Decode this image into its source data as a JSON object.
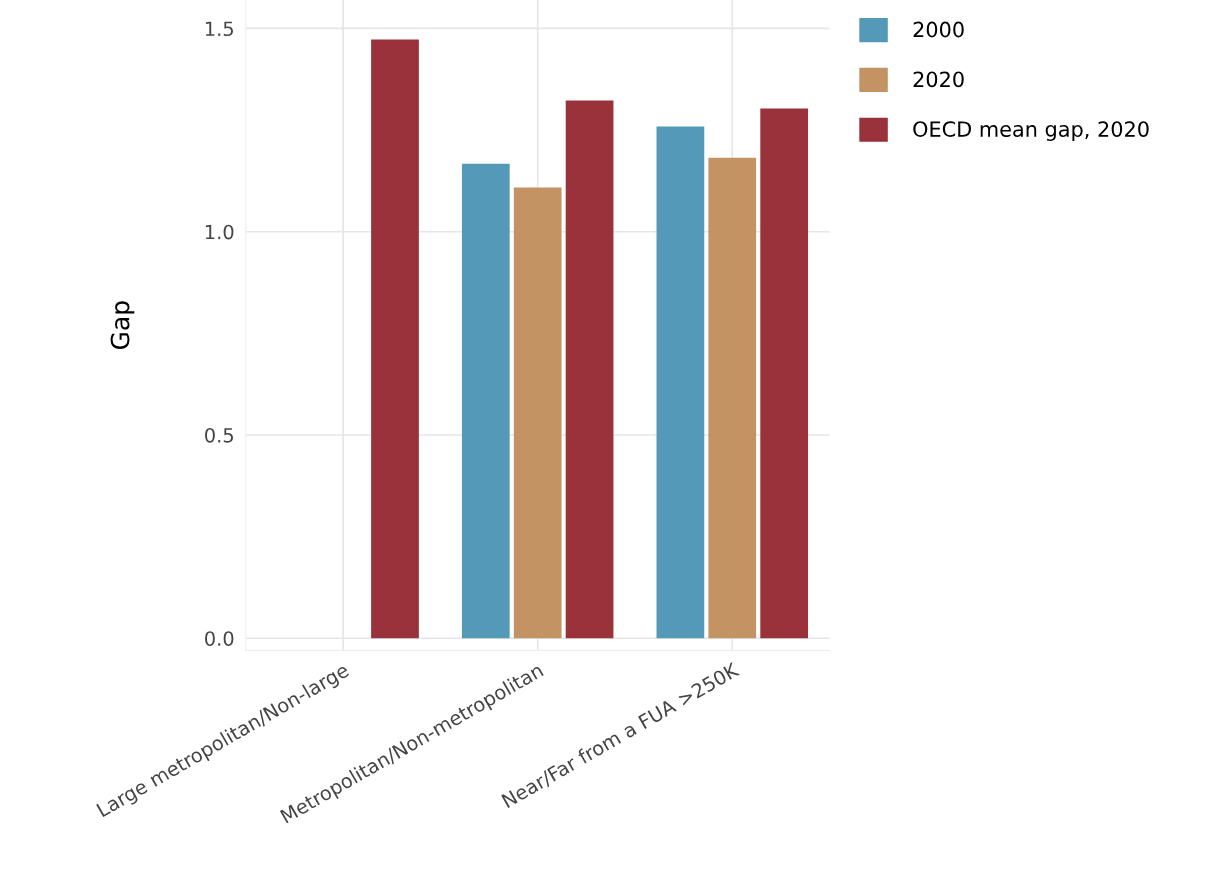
{
  "chart_data": {
    "type": "bar",
    "ylabel": "Gap",
    "categories": [
      "Large metropolitan/Non-large",
      "Metropolitan/Non-metropolitan",
      "Near/Far from a FUA >250K"
    ],
    "series": [
      {
        "name": "2000",
        "color": "#5499b8",
        "values": [
          null,
          1.167,
          1.259
        ]
      },
      {
        "name": "2020",
        "color": "#c49363",
        "values": [
          null,
          1.109,
          1.182
        ]
      },
      {
        "name": "OECD mean gap, 2020",
        "color": "#99323b",
        "values": [
          1.473,
          1.323,
          1.303
        ]
      }
    ],
    "ylim": [
      -0.03,
      1.57
    ],
    "yticks": [
      {
        "value": 0,
        "label": "0.0"
      },
      0.5,
      {
        "value": 1,
        "label": "1.0"
      },
      1.5
    ],
    "grid": true,
    "legend": "top right"
  }
}
